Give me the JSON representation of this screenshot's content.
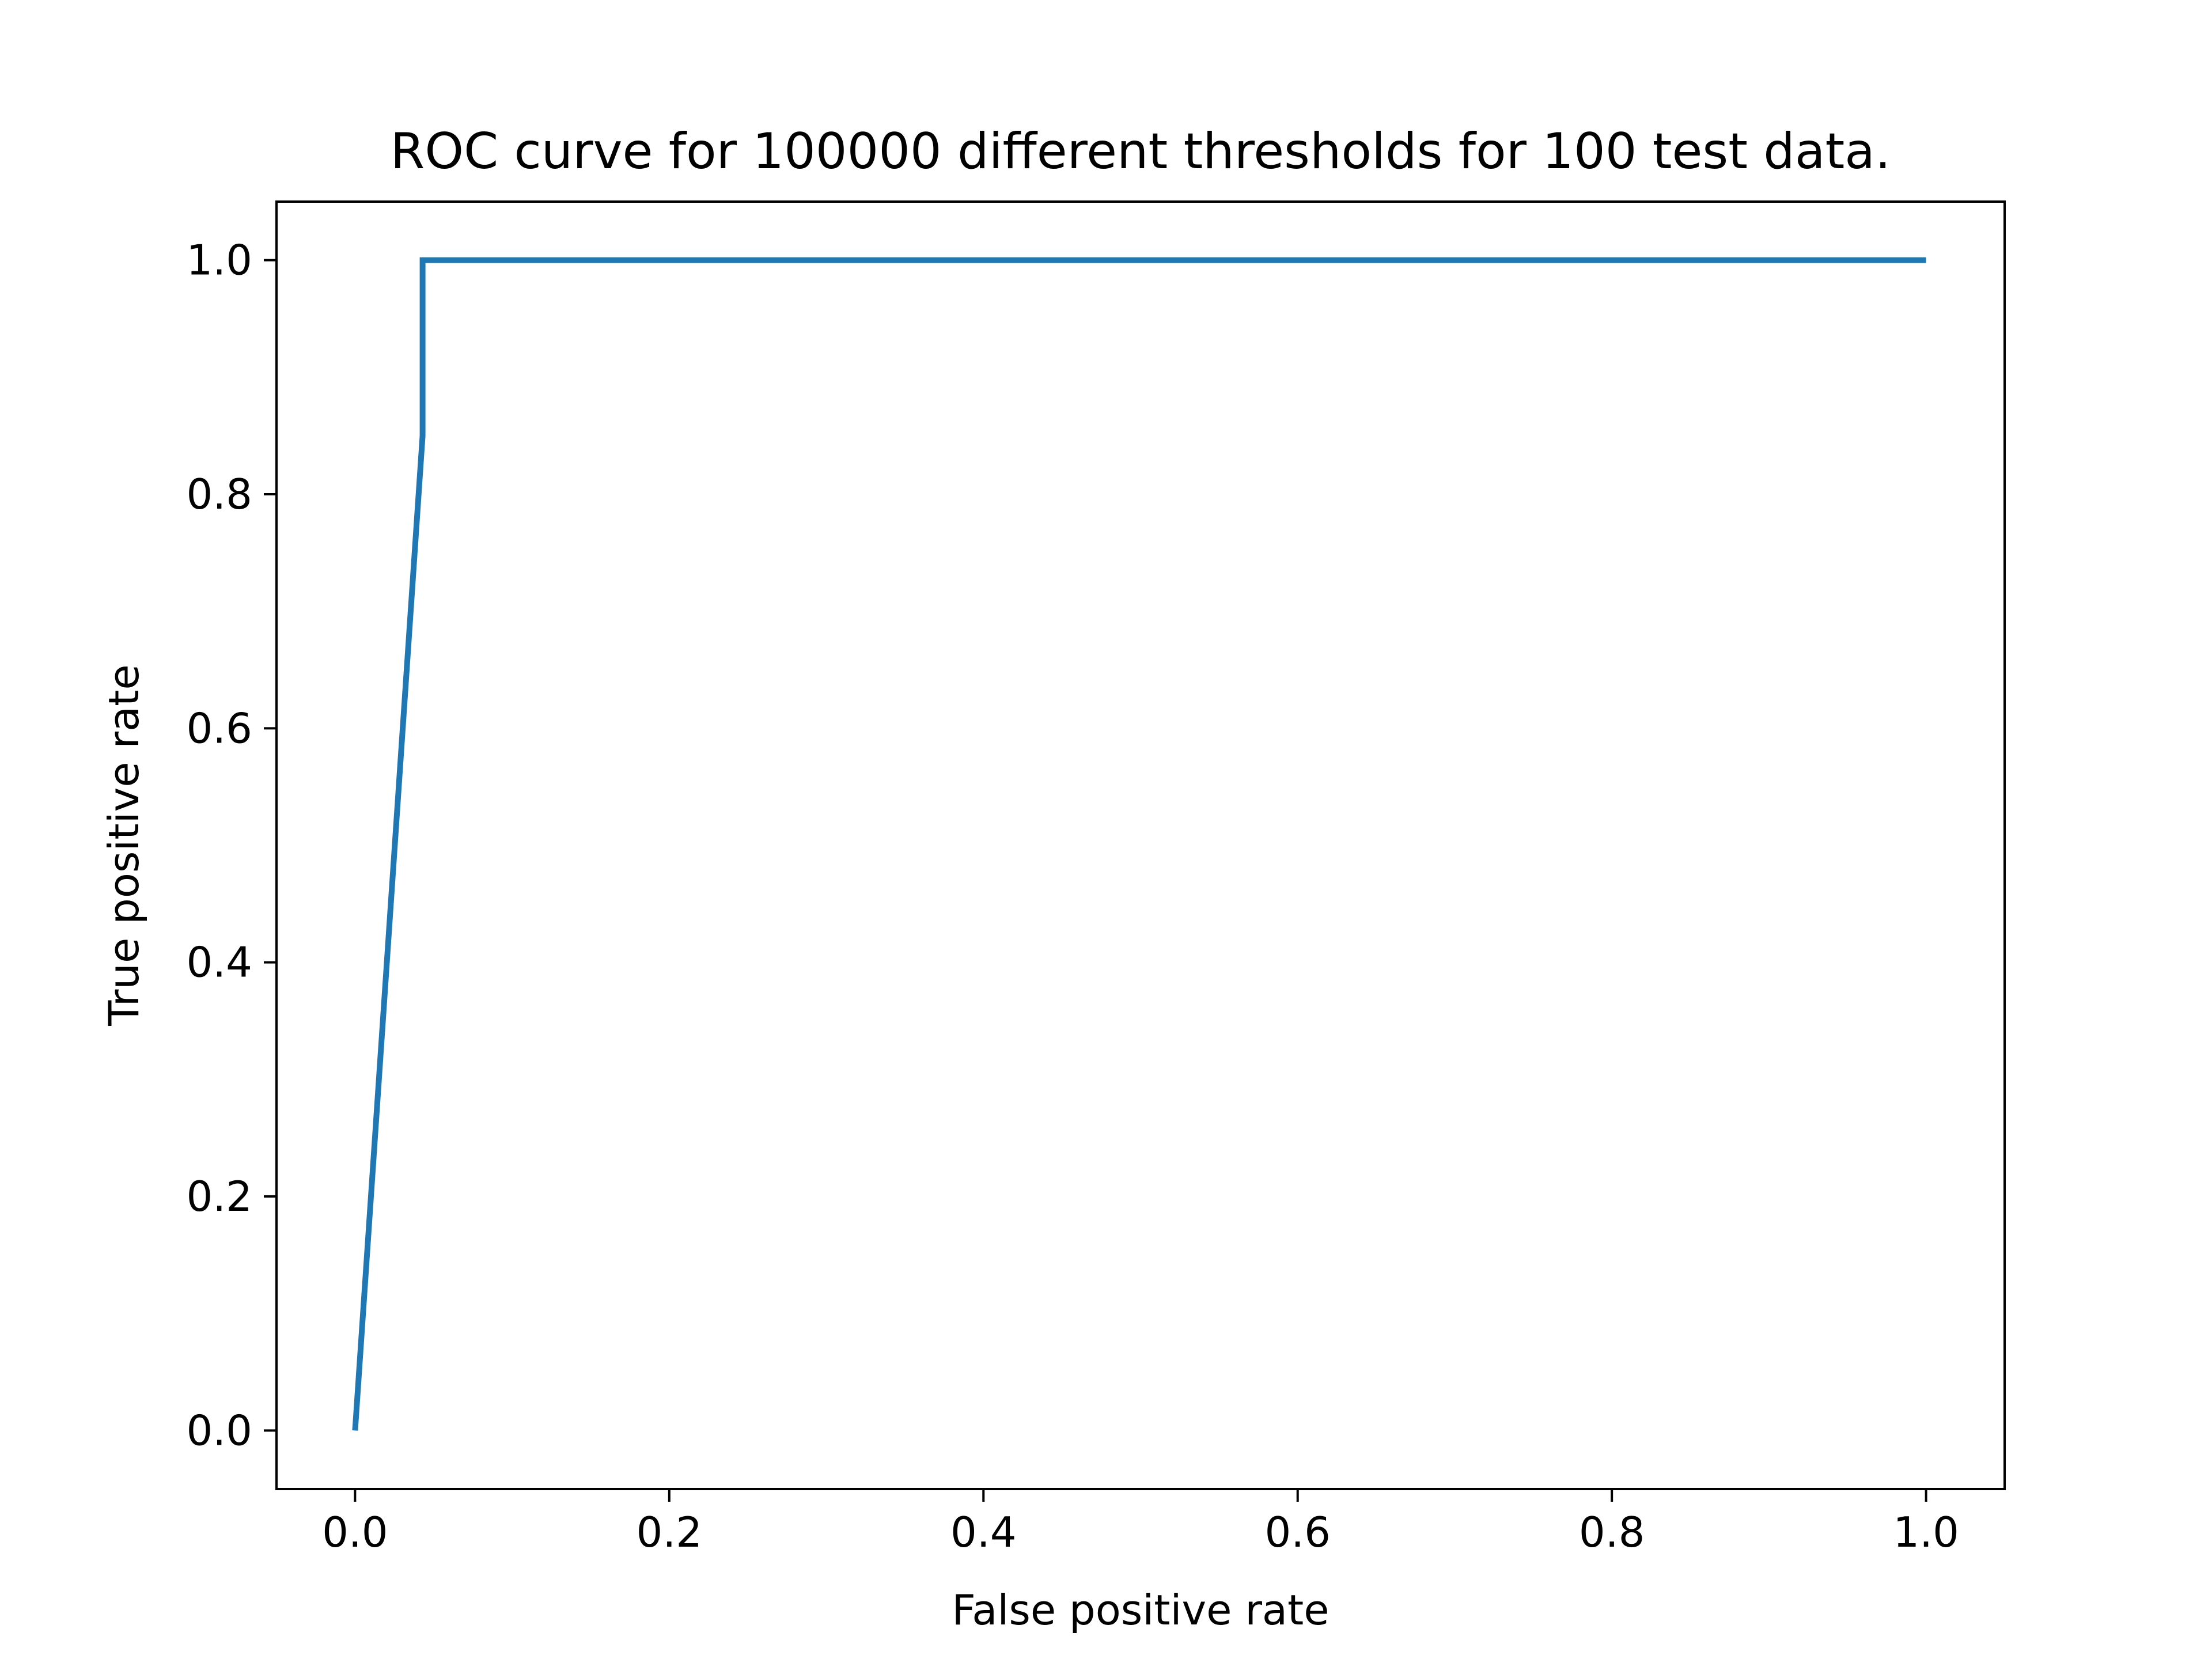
{
  "chart_data": {
    "type": "line",
    "title": "ROC curve for 100000 different thresholds for 100 test data.",
    "xlabel": "False positive rate",
    "ylabel": "True positive rate",
    "xlim": [
      -0.05,
      1.05
    ],
    "ylim": [
      -0.05,
      1.05
    ],
    "xticks": [
      0.0,
      0.2,
      0.4,
      0.6,
      0.8,
      1.0
    ],
    "yticks": [
      0.0,
      0.2,
      0.4,
      0.6,
      0.8,
      1.0
    ],
    "xtick_labels": [
      "0.0",
      "0.2",
      "0.4",
      "0.6",
      "0.8",
      "1.0"
    ],
    "ytick_labels": [
      "0.0",
      "0.2",
      "0.4",
      "0.6",
      "0.8",
      "1.0"
    ],
    "grid": false,
    "legend": "none",
    "series": [
      {
        "color": "#1f77b4",
        "x": [
          0.0,
          0.043,
          0.043,
          1.0
        ],
        "y": [
          0.0,
          0.85,
          1.0,
          1.0
        ]
      }
    ]
  }
}
